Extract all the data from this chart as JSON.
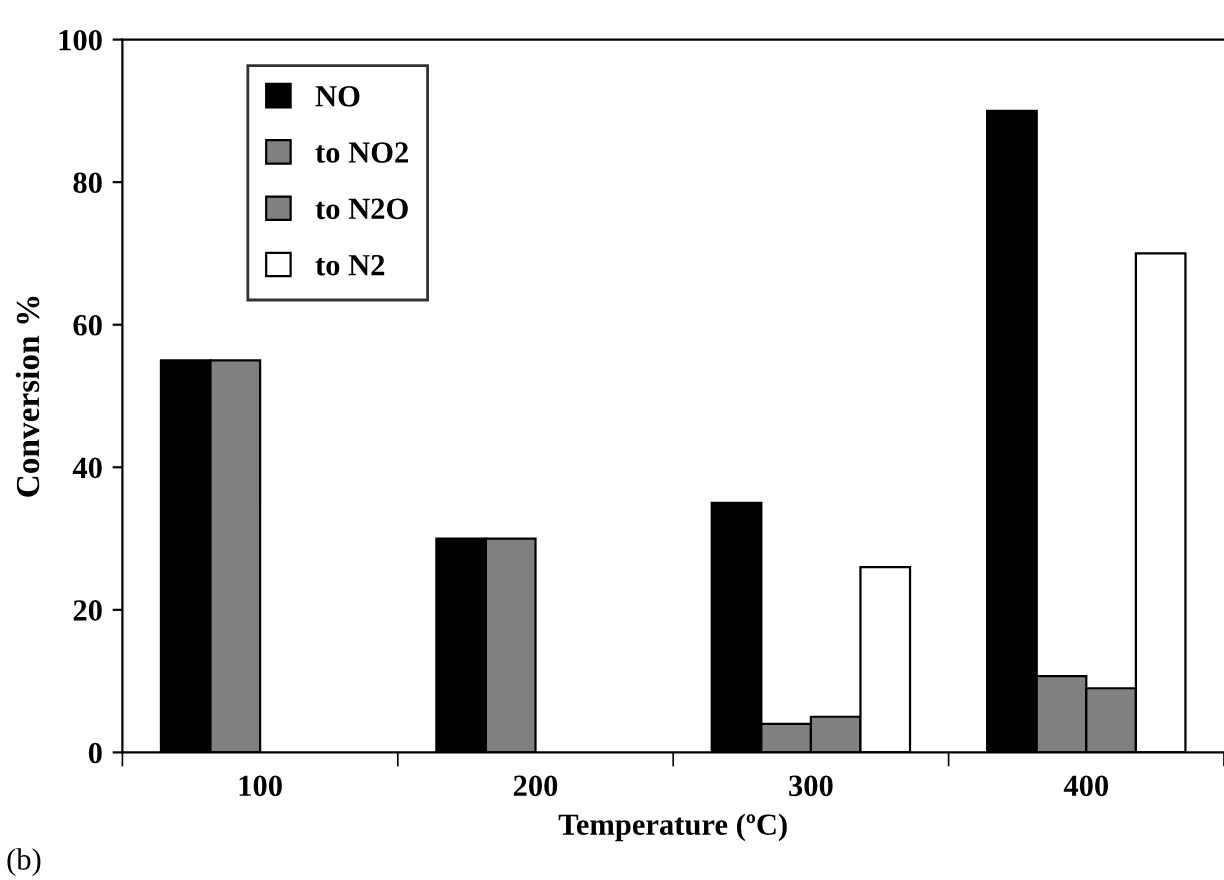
{
  "chart_data": {
    "type": "bar",
    "xlabel": "Temperature (ºC)",
    "ylabel": "Conversion %",
    "categories": [
      "100",
      "200",
      "300",
      "400"
    ],
    "series": [
      {
        "name": "NO",
        "color": "#000000",
        "values": [
          55,
          30,
          35,
          90
        ]
      },
      {
        "name": "to NO2",
        "color": "#808080",
        "values": [
          55,
          30,
          4,
          10.7
        ]
      },
      {
        "name": "to N2O",
        "color": "#808080",
        "values": [
          null,
          null,
          5,
          9
        ]
      },
      {
        "name": "to N2",
        "color": "#ffffff",
        "values": [
          null,
          null,
          26,
          70
        ]
      }
    ],
    "ylim": [
      0,
      100
    ],
    "yticks": [
      0,
      20,
      40,
      60,
      80,
      100
    ],
    "grid": false,
    "legend": "top left",
    "annotations": [
      "(b)"
    ]
  }
}
